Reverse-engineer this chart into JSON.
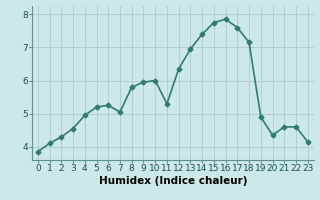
{
  "x": [
    0,
    1,
    2,
    3,
    4,
    5,
    6,
    7,
    8,
    9,
    10,
    11,
    12,
    13,
    14,
    15,
    16,
    17,
    18,
    19,
    20,
    21,
    22,
    23
  ],
  "y": [
    3.85,
    4.1,
    4.3,
    4.55,
    4.95,
    5.2,
    5.25,
    5.05,
    5.8,
    5.95,
    6.0,
    5.3,
    6.35,
    6.95,
    7.4,
    7.75,
    7.85,
    7.6,
    7.15,
    4.9,
    4.35,
    4.6,
    4.6,
    4.15
  ],
  "line_color": "#2e7d6e",
  "marker": "D",
  "marker_size": 2.5,
  "bg_color": "#cde8e8",
  "grid_color": "#b0d0d0",
  "xlabel": "Humidex (Indice chaleur)",
  "xlabel_fontsize": 7.5,
  "ylabel_ticks": [
    4,
    5,
    6,
    7,
    8
  ],
  "xtick_labels": [
    "0",
    "1",
    "2",
    "3",
    "4",
    "5",
    "6",
    "7",
    "8",
    "9",
    "10",
    "11",
    "12",
    "13",
    "14",
    "15",
    "16",
    "17",
    "18",
    "19",
    "20",
    "21",
    "22",
    "23"
  ],
  "ylim": [
    3.6,
    8.25
  ],
  "xlim": [
    -0.5,
    23.5
  ],
  "tick_fontsize": 6.5,
  "line_width": 1.2
}
